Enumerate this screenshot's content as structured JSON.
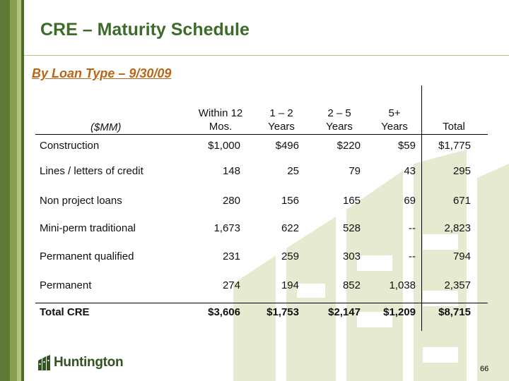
{
  "slide": {
    "title": "CRE – Maturity Schedule",
    "subtitle": "By Loan Type – 9/30/09",
    "page_number": "66",
    "logo_text": "Huntington"
  },
  "table": {
    "unit_label": "($MM)",
    "columns": [
      {
        "line1": "Within 12",
        "line2": "Mos."
      },
      {
        "line1": "1 – 2",
        "line2": "Years"
      },
      {
        "line1": "2 – 5",
        "line2": "Years"
      },
      {
        "line1": "5+",
        "line2": "Years"
      },
      {
        "line1": "",
        "line2": "Total"
      }
    ],
    "rows": [
      {
        "label": "Construction",
        "values": [
          "$1,000",
          "$496",
          "$220",
          "$59",
          "$1,775"
        ]
      },
      {
        "label": "Lines / letters of credit",
        "values": [
          "148",
          "25",
          "79",
          "43",
          "295"
        ]
      },
      {
        "label": "Non project loans",
        "values": [
          "280",
          "156",
          "165",
          "69",
          "671"
        ]
      },
      {
        "label": "Mini-perm traditional",
        "values": [
          "1,673",
          "622",
          "528",
          "--",
          "2,823"
        ]
      },
      {
        "label": "Permanent qualified",
        "values": [
          "231",
          "259",
          "303",
          "--",
          "794"
        ]
      },
      {
        "label": "Permanent",
        "values": [
          "274",
          "194",
          "852",
          "1,038",
          "2,357"
        ]
      }
    ],
    "total": {
      "label": "Total CRE",
      "values": [
        "$3,606",
        "$1,753",
        "$2,147",
        "$1,209",
        "$8,715"
      ]
    }
  },
  "colors": {
    "title": "#3d6b2a",
    "subtitle": "#b8661a",
    "sidebar_dark": "#5e7a35",
    "watermark": "#e6ead1"
  }
}
